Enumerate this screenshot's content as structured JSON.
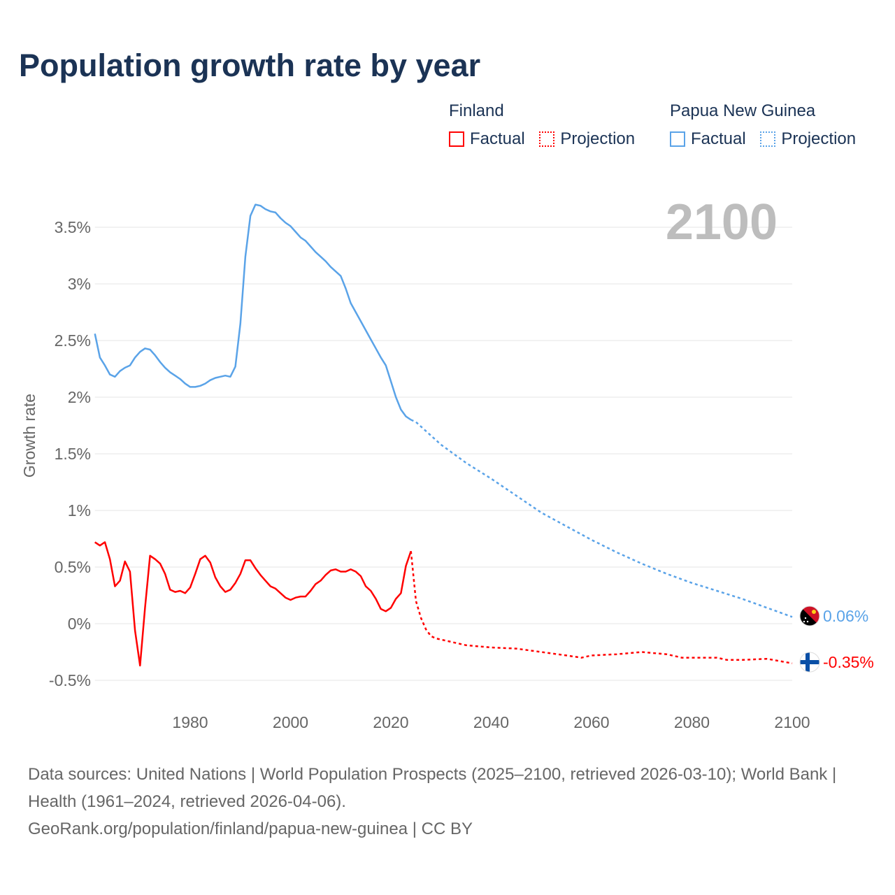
{
  "title": "Population growth rate by year",
  "legend": [
    {
      "group": "Finland",
      "color": "#ff0000",
      "factual": "Factual",
      "projection": "Projection"
    },
    {
      "group": "Papua New Guinea",
      "color": "#5aa3e8",
      "factual": "Factual",
      "projection": "Projection"
    }
  ],
  "footer": {
    "sources": "Data sources: United Nations | World Population Prospects (2025–2100, retrieved 2026-03-10); World Bank | Health (1961–2024, retrieved 2026-04-06).",
    "credit": "GeoRank.org/population/finland/papua-new-guinea | CC BY"
  },
  "chart_data": {
    "type": "line",
    "title": "Population growth rate by year",
    "ylabel": "Growth rate",
    "xlabel": "",
    "year_watermark": "2100",
    "xlim": [
      1961,
      2100
    ],
    "ylim": [
      -0.7,
      3.9
    ],
    "x_ticks": [
      1980,
      2000,
      2020,
      2040,
      2060,
      2080,
      2100
    ],
    "y_ticks": [
      -0.5,
      0,
      0.5,
      1,
      1.5,
      2,
      2.5,
      3,
      3.5
    ],
    "y_tick_labels": [
      "-0.5%",
      "0%",
      "0.5%",
      "1%",
      "1.5%",
      "2%",
      "2.5%",
      "3%",
      "3.5%"
    ],
    "grid": true,
    "series": [
      {
        "name": "Finland",
        "color": "#ff0000",
        "end_label": "-0.35%",
        "factual_start_year": 1961,
        "factual": [
          0.72,
          0.69,
          0.72,
          0.57,
          0.33,
          0.38,
          0.55,
          0.46,
          -0.06,
          -0.37,
          0.14,
          0.6,
          0.57,
          0.53,
          0.44,
          0.3,
          0.28,
          0.29,
          0.27,
          0.32,
          0.44,
          0.57,
          0.6,
          0.54,
          0.41,
          0.33,
          0.28,
          0.3,
          0.36,
          0.44,
          0.56,
          0.56,
          0.49,
          0.43,
          0.38,
          0.33,
          0.31,
          0.27,
          0.23,
          0.21,
          0.23,
          0.24,
          0.24,
          0.29,
          0.35,
          0.38,
          0.43,
          0.47,
          0.48,
          0.46,
          0.46,
          0.48,
          0.46,
          0.42,
          0.33,
          0.29,
          0.22,
          0.13,
          0.11,
          0.14,
          0.22,
          0.27,
          0.51,
          0.64
        ],
        "projection": [
          [
            2024,
            0.64
          ],
          [
            2025,
            0.2
          ],
          [
            2026,
            0.05
          ],
          [
            2027,
            -0.05
          ],
          [
            2028,
            -0.11
          ],
          [
            2029,
            -0.13
          ],
          [
            2030,
            -0.14
          ],
          [
            2035,
            -0.19
          ],
          [
            2040,
            -0.21
          ],
          [
            2045,
            -0.22
          ],
          [
            2050,
            -0.25
          ],
          [
            2055,
            -0.28
          ],
          [
            2058,
            -0.3
          ],
          [
            2060,
            -0.28
          ],
          [
            2065,
            -0.27
          ],
          [
            2070,
            -0.25
          ],
          [
            2075,
            -0.27
          ],
          [
            2078,
            -0.3
          ],
          [
            2085,
            -0.3
          ],
          [
            2087,
            -0.32
          ],
          [
            2090,
            -0.32
          ],
          [
            2095,
            -0.31
          ],
          [
            2100,
            -0.35
          ]
        ]
      },
      {
        "name": "Papua New Guinea",
        "color": "#5aa3e8",
        "end_label": "0.06%",
        "factual_start_year": 1961,
        "factual": [
          2.56,
          2.35,
          2.28,
          2.2,
          2.18,
          2.23,
          2.26,
          2.28,
          2.35,
          2.4,
          2.43,
          2.42,
          2.37,
          2.31,
          2.26,
          2.22,
          2.19,
          2.16,
          2.12,
          2.09,
          2.09,
          2.1,
          2.12,
          2.15,
          2.17,
          2.18,
          2.19,
          2.18,
          2.27,
          2.65,
          3.24,
          3.6,
          3.7,
          3.69,
          3.66,
          3.64,
          3.63,
          3.58,
          3.54,
          3.51,
          3.46,
          3.41,
          3.38,
          3.33,
          3.28,
          3.24,
          3.2,
          3.15,
          3.11,
          3.07,
          2.96,
          2.83,
          2.75,
          2.67,
          2.59,
          2.51,
          2.43,
          2.35,
          2.28,
          2.14,
          2.0,
          1.89,
          1.83,
          1.8
        ],
        "projection": [
          [
            2024,
            1.8
          ],
          [
            2025,
            1.78
          ],
          [
            2030,
            1.58
          ],
          [
            2035,
            1.42
          ],
          [
            2040,
            1.28
          ],
          [
            2045,
            1.13
          ],
          [
            2050,
            0.98
          ],
          [
            2055,
            0.86
          ],
          [
            2060,
            0.74
          ],
          [
            2065,
            0.63
          ],
          [
            2070,
            0.53
          ],
          [
            2075,
            0.44
          ],
          [
            2080,
            0.36
          ],
          [
            2085,
            0.29
          ],
          [
            2090,
            0.22
          ],
          [
            2095,
            0.14
          ],
          [
            2100,
            0.06
          ]
        ]
      }
    ]
  }
}
